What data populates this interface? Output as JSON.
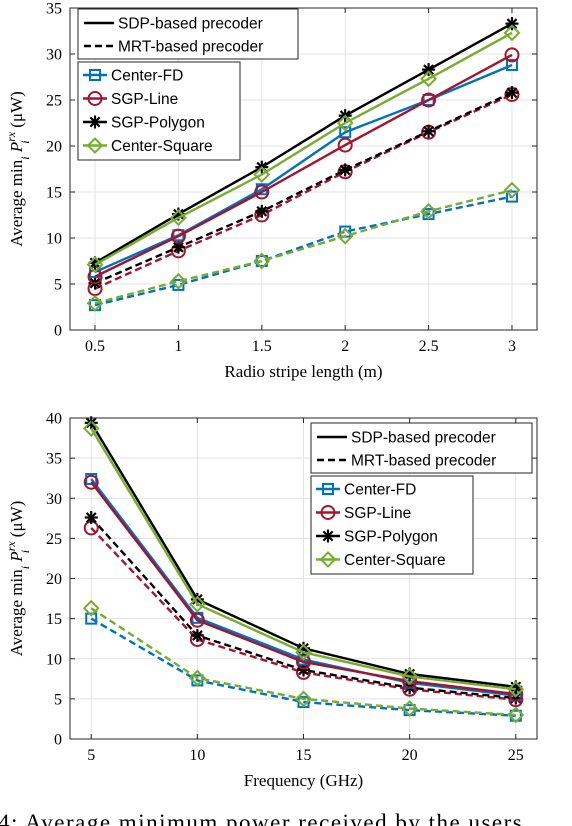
{
  "chart_data": [
    {
      "type": "line",
      "xlabel": "Radio stripe length (m)",
      "ylabel_prefix": "Average min",
      "ylabel_sub": "i",
      "ylabel_var": "P",
      "ylabel_sup": "rx",
      "ylabel_sub2": "i",
      "ylabel_unit": "(μW)",
      "xlim": [
        0.35,
        3.15
      ],
      "ylim": [
        0,
        35
      ],
      "xticks": [
        0.5,
        1,
        1.5,
        2,
        2.5,
        3
      ],
      "xtick_labels": [
        "0.5",
        "1",
        "1.5",
        "2",
        "2.5",
        "3"
      ],
      "yticks": [
        0,
        5,
        10,
        15,
        20,
        25,
        30,
        35
      ],
      "ytick_labels": [
        "0",
        "5",
        "10",
        "15",
        "20",
        "25",
        "30",
        "35"
      ],
      "grid": true,
      "legend_position": "top-left",
      "legend_precoders": [
        {
          "label": "SDP-based precoder",
          "style": "solid"
        },
        {
          "label": "MRT-based precoder",
          "style": "dashed"
        }
      ],
      "legend_markers": [
        {
          "label": "Center-FD",
          "marker": "square",
          "color": "#0072BD"
        },
        {
          "label": "SGP-Line",
          "marker": "circle",
          "color": "#A2142F"
        },
        {
          "label": "SGP-Polygon",
          "marker": "asterisk",
          "color": "#000000"
        },
        {
          "label": "Center-Square",
          "marker": "diamond",
          "color": "#77AC30"
        }
      ],
      "x": [
        0.5,
        1,
        1.5,
        2,
        2.5,
        3
      ],
      "series": [
        {
          "name": "Center-FD",
          "precoder": "SDP",
          "values": [
            6.3,
            10.3,
            15.3,
            21.5,
            25.0,
            28.8
          ]
        },
        {
          "name": "SGP-Line",
          "precoder": "SDP",
          "values": [
            5.8,
            10.2,
            15.0,
            20.1,
            25.0,
            29.9
          ]
        },
        {
          "name": "SGP-Polygon",
          "precoder": "SDP",
          "values": [
            7.3,
            12.6,
            17.7,
            23.3,
            28.3,
            33.3
          ]
        },
        {
          "name": "Center-Square",
          "precoder": "SDP",
          "values": [
            7.1,
            12.2,
            16.9,
            22.5,
            27.3,
            32.3
          ]
        },
        {
          "name": "Center-FD",
          "precoder": "MRT",
          "values": [
            2.7,
            4.9,
            7.5,
            10.7,
            12.6,
            14.5
          ]
        },
        {
          "name": "SGP-Line",
          "precoder": "MRT",
          "values": [
            4.5,
            8.6,
            12.5,
            17.2,
            21.5,
            25.6
          ]
        },
        {
          "name": "SGP-Polygon",
          "precoder": "MRT",
          "values": [
            5.1,
            9.0,
            12.9,
            17.4,
            21.6,
            25.8
          ]
        },
        {
          "name": "Center-Square",
          "precoder": "MRT",
          "values": [
            2.9,
            5.3,
            7.5,
            10.2,
            12.9,
            15.2
          ]
        }
      ]
    },
    {
      "type": "line",
      "xlabel": "Frequency (GHz)",
      "ylabel_prefix": "Average min",
      "ylabel_sub": "i",
      "ylabel_var": "P",
      "ylabel_sup": "rx",
      "ylabel_sub2": "i",
      "ylabel_unit": "(μW)",
      "xlim": [
        4,
        26
      ],
      "ylim": [
        0,
        40
      ],
      "xticks": [
        5,
        10,
        15,
        20,
        25
      ],
      "xtick_labels": [
        "5",
        "10",
        "15",
        "20",
        "25"
      ],
      "yticks": [
        0,
        5,
        10,
        15,
        20,
        25,
        30,
        35,
        40
      ],
      "ytick_labels": [
        "0",
        "5",
        "10",
        "15",
        "20",
        "25",
        "30",
        "35",
        "40"
      ],
      "grid": true,
      "legend_position": "top-right",
      "legend_precoders": [
        {
          "label": "SDP-based precoder",
          "style": "solid"
        },
        {
          "label": "MRT-based precoder",
          "style": "dashed"
        }
      ],
      "legend_markers": [
        {
          "label": "Center-FD",
          "marker": "square",
          "color": "#0072BD"
        },
        {
          "label": "SGP-Line",
          "marker": "circle",
          "color": "#A2142F"
        },
        {
          "label": "SGP-Polygon",
          "marker": "asterisk",
          "color": "#000000"
        },
        {
          "label": "Center-Square",
          "marker": "diamond",
          "color": "#77AC30"
        }
      ],
      "x": [
        5,
        10,
        15,
        20,
        25
      ],
      "series": [
        {
          "name": "Center-FD",
          "precoder": "SDP",
          "values": [
            32.4,
            15.1,
            9.9,
            7.0,
            5.4
          ]
        },
        {
          "name": "SGP-Line",
          "precoder": "SDP",
          "values": [
            32.0,
            14.8,
            9.6,
            7.2,
            5.6
          ]
        },
        {
          "name": "SGP-Polygon",
          "precoder": "SDP",
          "values": [
            39.4,
            17.4,
            11.3,
            8.1,
            6.5
          ]
        },
        {
          "name": "Center-Square",
          "precoder": "SDP",
          "values": [
            38.7,
            16.8,
            10.8,
            7.8,
            6.2
          ]
        },
        {
          "name": "Center-FD",
          "precoder": "MRT",
          "values": [
            15.0,
            7.3,
            4.6,
            3.6,
            2.9
          ]
        },
        {
          "name": "SGP-Line",
          "precoder": "MRT",
          "values": [
            26.3,
            12.4,
            8.3,
            6.2,
            4.9
          ]
        },
        {
          "name": "SGP-Polygon",
          "precoder": "MRT",
          "values": [
            27.6,
            12.9,
            8.6,
            6.4,
            5.1
          ]
        },
        {
          "name": "Center-Square",
          "precoder": "MRT",
          "values": [
            16.3,
            7.6,
            5.0,
            3.8,
            3.0
          ]
        }
      ]
    }
  ],
  "caption_fragment": "4:  Average  minimum  power  received  by  the  users"
}
